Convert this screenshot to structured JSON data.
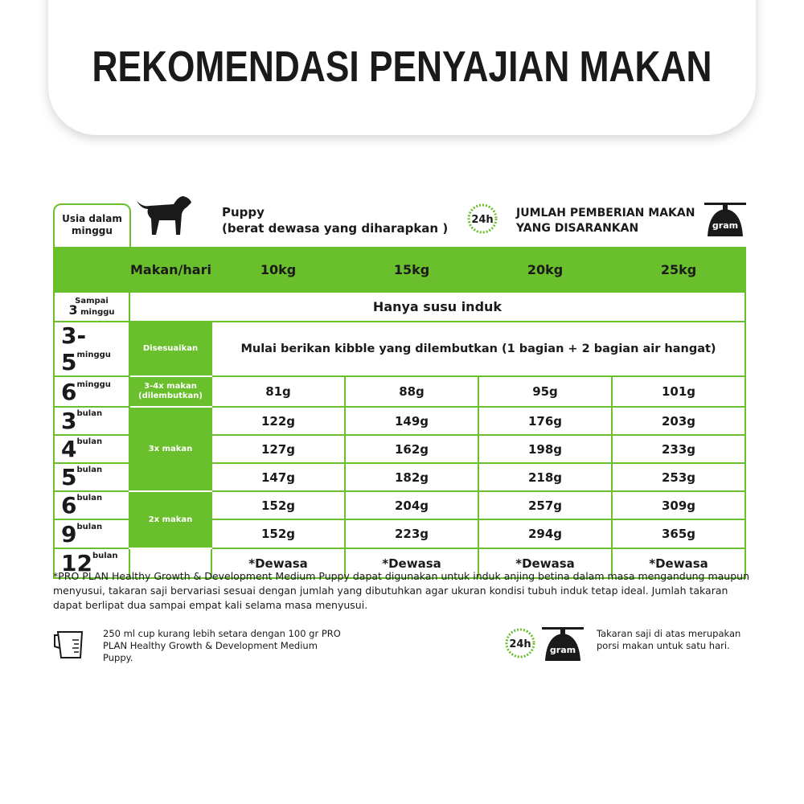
{
  "title": "REKOMENDASI PENYAJIAN MAKAN",
  "age_header": "Usia dalam minggu",
  "puppy_title": "Puppy",
  "puppy_subtitle": "(berat dewasa yang diharapkan )",
  "recommend_line1": "JUMLAH PEMBERIAN MAKAN",
  "recommend_line2": "YANG DISARANKAN",
  "clock_label": "24h",
  "scale_label": "gram",
  "accent_color": "#6abf2c",
  "table": {
    "header": [
      "Makan/hari",
      "10kg",
      "15kg",
      "20kg",
      "25kg"
    ],
    "row_sampai": {
      "age_top": "Sampai",
      "age_num": "3",
      "age_unit": "minggu",
      "text": "Hanya susu induk"
    },
    "row_35": {
      "age_num": "3-5",
      "age_unit": "minggu",
      "meals": "Disesuaikan",
      "text": "Mulai berikan kibble yang dilembutkan (1 bagian + 2 bagian air hangat)"
    },
    "meals_34": "3-4x makan (dilembutkan)",
    "meals_3x": "3x makan",
    "meals_2x": "2x makan",
    "rows": [
      {
        "age_num": "6",
        "age_unit": "minggu",
        "values": [
          "81g",
          "88g",
          "95g",
          "101g"
        ]
      },
      {
        "age_num": "3",
        "age_unit": "bulan",
        "values": [
          "122g",
          "149g",
          "176g",
          "203g"
        ]
      },
      {
        "age_num": "4",
        "age_unit": "bulan",
        "values": [
          "127g",
          "162g",
          "198g",
          "233g"
        ]
      },
      {
        "age_num": "5",
        "age_unit": "bulan",
        "values": [
          "147g",
          "182g",
          "218g",
          "253g"
        ]
      },
      {
        "age_num": "6",
        "age_unit": "bulan",
        "values": [
          "152g",
          "204g",
          "257g",
          "309g"
        ]
      },
      {
        "age_num": "9",
        "age_unit": "bulan",
        "values": [
          "152g",
          "223g",
          "294g",
          "365g"
        ]
      },
      {
        "age_num": "12",
        "age_unit": "bulan",
        "values": [
          "*Dewasa",
          "*Dewasa",
          "*Dewasa",
          "*Dewasa"
        ]
      }
    ]
  },
  "note": "*PRO PLAN Healthy Growth & Development Medium Puppy dapat digunakan untuk induk anjing betina dalam masa mengandung maupun menyusui, takaran saji bervariasi sesuai dengan jumlah yang dibutuhkan agar ukuran kondisi tubuh induk tetap ideal. Jumlah takaran dapat berlipat dua sampai empat kali selama masa menyusui.",
  "cup_text": "250 ml cup kurang lebih setara dengan 100 gr PRO PLAN Healthy Growth & Development Medium Puppy.",
  "takaran_text": "Takaran saji di atas merupakan porsi makan untuk satu hari."
}
